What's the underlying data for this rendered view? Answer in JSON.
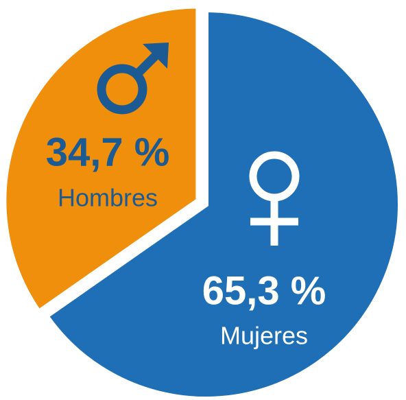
{
  "chart_data": {
    "type": "pie",
    "categories": [
      "Mujeres",
      "Hombres"
    ],
    "values": [
      65.3,
      34.7
    ],
    "value_labels": [
      "65,3 %",
      "34,7 %"
    ],
    "colors": [
      "#1f6fb7",
      "#f08f0c"
    ]
  }
}
